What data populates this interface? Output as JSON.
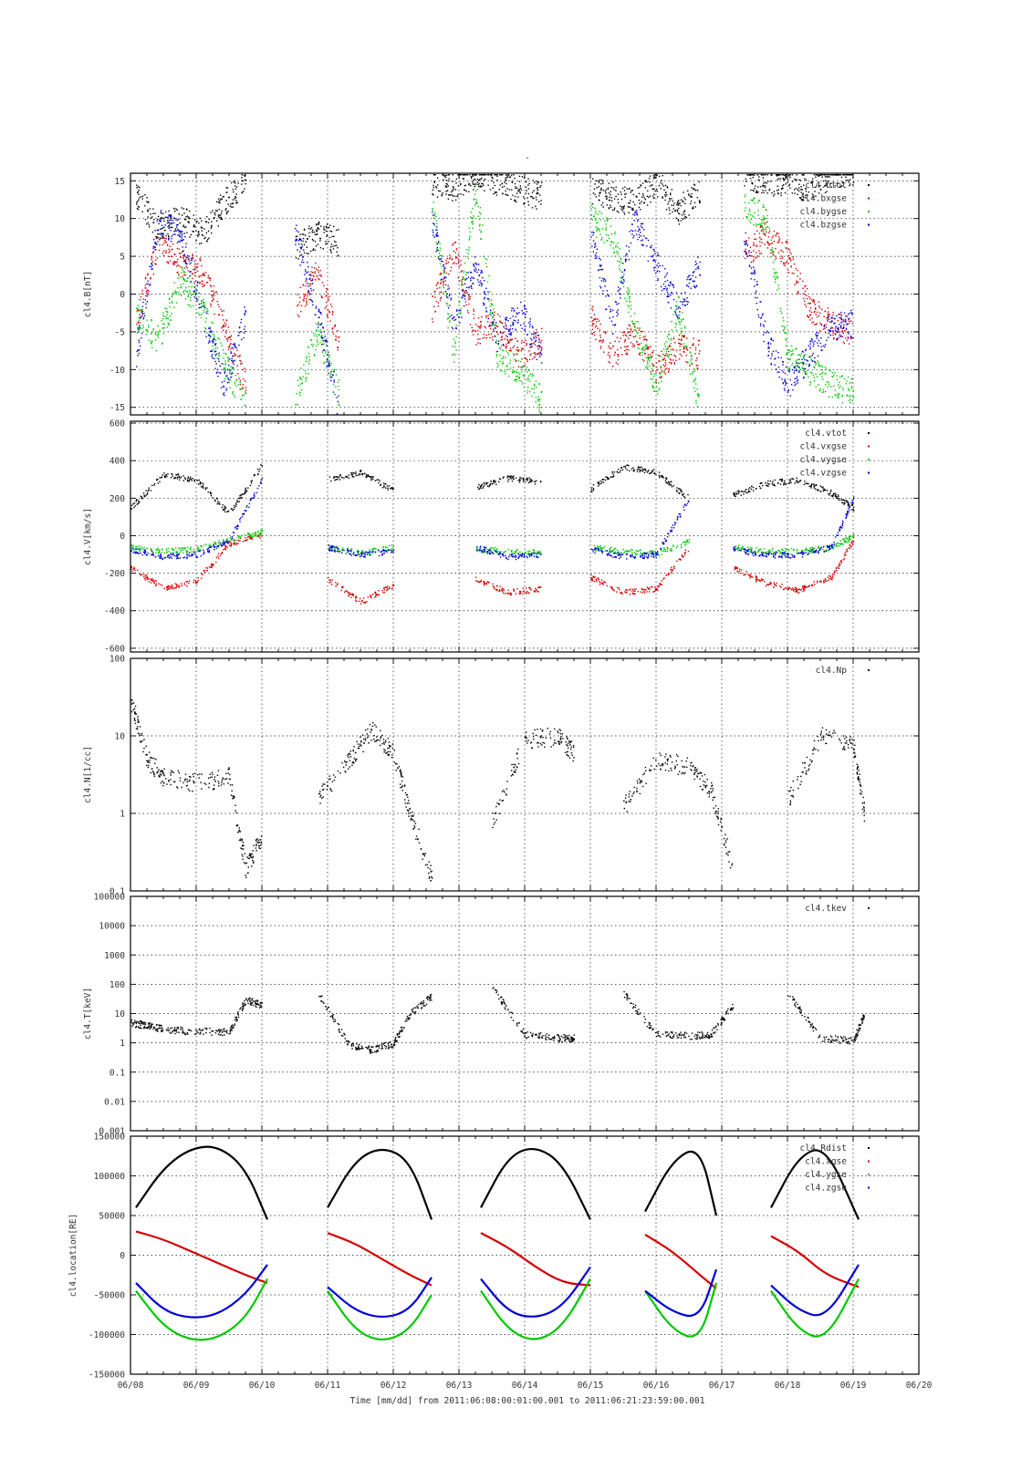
{
  "page": {
    "title": "-",
    "time_axis_label": "Time [mm/dd]  from 2011:06:08:00:01:00.001  to  2011:06:21:23:59:00.001"
  },
  "colors": {
    "black": "#000000",
    "red": "#d40000",
    "green": "#00c800",
    "blue": "#0000d8"
  },
  "x_axis": {
    "start": "2011-06-08",
    "end": "2011-06-20",
    "tick_labels": [
      "06/08",
      "06/09",
      "06/10",
      "06/11",
      "06/12",
      "06/13",
      "06/14",
      "06/15",
      "06/16",
      "06/17",
      "06/18",
      "06/19",
      "06/20"
    ]
  },
  "chart_data": [
    {
      "type": "scatter",
      "ylabel": "cl4.B[nT]",
      "ylim": [
        -16,
        16
      ],
      "yscale": "linear",
      "yticks": [
        -15,
        -10,
        -5,
        0,
        5,
        10,
        15
      ],
      "ytick_labels": [
        "-15",
        "-10",
        "-5",
        "0",
        "5",
        "10",
        "15"
      ],
      "grid": true,
      "legend_position": "top-right",
      "x": [
        "06/08 02h",
        "06/08 10h",
        "06/08 18h",
        "06/09 02h",
        "06/09 10h",
        "06/09 18h",
        "06/10 01h",
        "06/10 12h",
        "06/10 20h",
        "06/11 04h",
        "06/11 12h",
        "06/11 20h",
        "06/12 04h",
        "06/12 14h",
        "06/12 22h",
        "06/13 06h",
        "06/13 14h",
        "06/13 22h",
        "06/14 06h",
        "06/14 14h",
        "06/15 00h",
        "06/15 08h",
        "06/15 16h",
        "06/16 00h",
        "06/16 08h",
        "06/16 16h",
        "06/16 22h",
        "06/17 08h",
        "06/17 16h",
        "06/18 00h",
        "06/18 08h",
        "06/18 16h",
        "06/19 00h",
        "06/19 02h"
      ],
      "series": [
        {
          "name": "cl4.btot",
          "color": "#000000",
          "values": [
            13,
            9,
            10,
            8,
            12,
            15,
            null,
            6,
            8,
            7,
            null,
            null,
            null,
            15,
            14,
            16,
            15,
            14,
            13,
            null,
            14,
            13,
            12,
            15,
            11,
            14,
            null,
            16,
            15,
            15,
            14,
            16,
            16,
            null
          ]
        },
        {
          "name": "cl4.bxgse",
          "color": "#d40000",
          "values": [
            -4,
            7,
            4,
            3,
            -4,
            -12,
            null,
            -2,
            3,
            -6,
            null,
            null,
            null,
            -2,
            6,
            -5,
            -4,
            -8,
            -6,
            null,
            -3,
            -8,
            -5,
            -10,
            -7,
            -8,
            null,
            5,
            8,
            5,
            -2,
            -4,
            -5,
            null
          ]
        },
        {
          "name": "cl4.bygse",
          "color": "#00c800",
          "values": [
            -3,
            -6,
            2,
            -2,
            -9,
            -15,
            null,
            -14,
            -5,
            -13,
            null,
            null,
            null,
            12,
            -8,
            14,
            -8,
            -10,
            -14,
            null,
            10,
            8,
            -4,
            -12,
            -2,
            -15,
            null,
            12,
            10,
            -8,
            -10,
            -12,
            -13,
            null
          ]
        },
        {
          "name": "cl4.bzgse",
          "color": "#0000d8",
          "values": [
            -8,
            10,
            8,
            -2,
            -12,
            -3,
            null,
            8,
            -2,
            -15,
            null,
            null,
            null,
            10,
            -4,
            4,
            -6,
            -2,
            -8,
            null,
            8,
            -4,
            10,
            4,
            -2,
            4,
            null,
            8,
            -6,
            -12,
            -8,
            -4,
            -4,
            null
          ]
        }
      ]
    },
    {
      "type": "scatter",
      "ylabel": "cl4.V[km/s]",
      "ylim": [
        -620,
        610
      ],
      "yscale": "linear",
      "yticks": [
        -600,
        -400,
        -200,
        0,
        200,
        400,
        600
      ],
      "ytick_labels": [
        "-600",
        "-400",
        "-200",
        "0",
        "200",
        "400",
        "600"
      ],
      "grid": true,
      "legend_position": "top-right",
      "x": [
        "06/08 00h",
        "06/08 12h",
        "06/09 00h",
        "06/09 12h",
        "06/10 00h",
        "06/10 12h",
        "06/11 00h",
        "06/11 12h",
        "06/12 00h",
        "06/12 10h",
        "06/12 18h",
        "06/13 06h",
        "06/13 18h",
        "06/14 06h",
        "06/14 18h",
        "06/15 00h",
        "06/15 12h",
        "06/16 00h",
        "06/16 12h",
        "06/16 20h",
        "06/17 04h",
        "06/17 16h",
        "06/18 04h",
        "06/18 16h",
        "06/19 00h",
        "06/19 04h"
      ],
      "series": [
        {
          "name": "cl4.vtot",
          "color": "#000000",
          "values": [
            150,
            330,
            300,
            120,
            380,
            null,
            300,
            340,
            240,
            null,
            null,
            260,
            310,
            290,
            null,
            250,
            370,
            340,
            200,
            null,
            220,
            280,
            300,
            230,
            150,
            null
          ]
        },
        {
          "name": "cl4.vxgse",
          "color": "#d40000",
          "values": [
            -170,
            -280,
            -240,
            -40,
            10,
            null,
            -230,
            -350,
            -260,
            null,
            null,
            -230,
            -300,
            -280,
            null,
            -220,
            -300,
            -280,
            -60,
            null,
            -170,
            -250,
            -290,
            -220,
            -20,
            null
          ]
        },
        {
          "name": "cl4.vygse",
          "color": "#00c800",
          "values": [
            -60,
            -80,
            -70,
            -20,
            20,
            null,
            -60,
            -90,
            -60,
            null,
            null,
            -70,
            -80,
            -90,
            null,
            -60,
            -80,
            -90,
            -30,
            null,
            -60,
            -80,
            -80,
            -60,
            0,
            null
          ]
        },
        {
          "name": "cl4.vzgse",
          "color": "#0000d8",
          "values": [
            -70,
            -110,
            -100,
            -20,
            300,
            null,
            -60,
            -100,
            -80,
            null,
            null,
            -60,
            -110,
            -100,
            null,
            -70,
            -110,
            -100,
            200,
            null,
            -70,
            -100,
            -100,
            -60,
            200,
            null
          ]
        }
      ]
    },
    {
      "type": "scatter",
      "ylabel": "cl4.N[1/cc]",
      "ylim": [
        0.1,
        100
      ],
      "yscale": "log",
      "yticks": [
        0.1,
        1,
        10,
        100
      ],
      "ytick_labels": [
        "0.1",
        "1",
        "10",
        "100"
      ],
      "grid": true,
      "legend_position": "top-right",
      "x": [
        "06/08 00h",
        "06/08 06h",
        "06/08 12h",
        "06/09 00h",
        "06/09 12h",
        "06/09 18h",
        "06/10 00h",
        "06/10 12h",
        "06/10 20h",
        "06/11 08h",
        "06/11 16h",
        "06/12 00h",
        "06/12 06h",
        "06/12 14h",
        "06/12 22h",
        "06/13 12h",
        "06/14 00h",
        "06/14 12h",
        "06/14 18h",
        "06/15 00h",
        "06/15 12h",
        "06/16 00h",
        "06/16 12h",
        "06/16 20h",
        "06/17 04h",
        "06/17 12h",
        "06/18 00h",
        "06/18 12h",
        "06/19 00h",
        "06/19 04h"
      ],
      "series": [
        {
          "name": "cl4.Np",
          "color": "#000000",
          "values": [
            30,
            5,
            3,
            2.5,
            3,
            0.2,
            0.5,
            null,
            1.5,
            5,
            12,
            6,
            1,
            0.15,
            null,
            0.8,
            9,
            10,
            6,
            null,
            1.2,
            5,
            4,
            2,
            0.2,
            null,
            1.5,
            10,
            8,
            1
          ]
        }
      ]
    },
    {
      "type": "scatter",
      "ylabel": "cl4.T[keV]",
      "ylim": [
        0.001,
        100000
      ],
      "yscale": "log",
      "yticks": [
        0.001,
        0.01,
        0.1,
        1,
        10,
        100,
        1000,
        10000,
        100000
      ],
      "ytick_labels": [
        "0.001",
        "0.01",
        "0.1",
        "1",
        "10",
        "100",
        "1000",
        "10000",
        "100000"
      ],
      "grid": true,
      "legend_position": "top-right",
      "x": [
        "06/08 00h",
        "06/08 06h",
        "06/08 12h",
        "06/09 00h",
        "06/09 12h",
        "06/09 18h",
        "06/10 00h",
        "06/10 12h",
        "06/10 20h",
        "06/11 08h",
        "06/11 16h",
        "06/12 00h",
        "06/12 06h",
        "06/12 14h",
        "06/12 22h",
        "06/13 12h",
        "06/14 00h",
        "06/14 12h",
        "06/14 18h",
        "06/15 00h",
        "06/15 12h",
        "06/16 00h",
        "06/16 12h",
        "06/16 20h",
        "06/17 04h",
        "06/17 12h",
        "06/18 00h",
        "06/18 12h",
        "06/19 00h",
        "06/19 04h"
      ],
      "series": [
        {
          "name": "cl4.tkev",
          "color": "#000000",
          "values": [
            5,
            4,
            3,
            2.5,
            2.5,
            30,
            20,
            null,
            60,
            0.8,
            0.6,
            1,
            10,
            40,
            null,
            80,
            2,
            1.5,
            1.5,
            null,
            50,
            2,
            1.8,
            2,
            20,
            null,
            50,
            1.5,
            1.2,
            10
          ]
        }
      ]
    },
    {
      "type": "line",
      "ylabel": "cl4.location[RE]",
      "ylim": [
        -150000,
        150000
      ],
      "yscale": "linear",
      "yticks": [
        -150000,
        -100000,
        -50000,
        0,
        50000,
        100000,
        150000
      ],
      "ytick_labels": [
        "-150000",
        "-100000",
        "-50000",
        "0",
        "50000",
        "100000",
        "150000"
      ],
      "grid": true,
      "legend_position": "top-right",
      "x": [
        "06/08 02h",
        "06/08 12h",
        "06/08 22h",
        "06/09 08h",
        "06/09 18h",
        "06/10 02h",
        "06/10 14h",
        "06/11 00h",
        "06/11 10h",
        "06/11 20h",
        "06/12 06h",
        "06/12 14h",
        "06/12 22h",
        "06/13 08h",
        "06/13 18h",
        "06/14 04h",
        "06/14 14h",
        "06/15 00h",
        "06/15 10h",
        "06/15 20h",
        "06/16 06h",
        "06/16 16h",
        "06/16 22h",
        "06/17 08h",
        "06/17 18h",
        "06/18 04h",
        "06/18 14h",
        "06/19 02h"
      ],
      "series": [
        {
          "name": "cl4.Rdist",
          "color": "#000000",
          "values": [
            60000,
            110000,
            135000,
            138000,
            110000,
            45000,
            null,
            60000,
            120000,
            137000,
            120000,
            45000,
            null,
            60000,
            125000,
            138000,
            115000,
            45000,
            null,
            55000,
            120000,
            138000,
            50000,
            null,
            60000,
            125000,
            138000,
            45000
          ]
        },
        {
          "name": "cl4.xgse",
          "color": "#d40000",
          "values": [
            30000,
            20000,
            5000,
            -10000,
            -25000,
            -35000,
            null,
            28000,
            15000,
            -5000,
            -25000,
            -38000,
            null,
            28000,
            10000,
            -15000,
            -35000,
            -38000,
            null,
            26000,
            5000,
            -25000,
            -42000,
            null,
            24000,
            5000,
            -25000,
            -40000
          ]
        },
        {
          "name": "cl4.ygse",
          "color": "#00c800",
          "values": [
            -45000,
            -90000,
            -108000,
            -105000,
            -80000,
            -30000,
            null,
            -45000,
            -95000,
            -110000,
            -95000,
            -50000,
            null,
            -45000,
            -95000,
            -110000,
            -90000,
            -30000,
            null,
            -45000,
            -95000,
            -108000,
            -35000,
            null,
            -45000,
            -95000,
            -108000,
            -30000
          ]
        },
        {
          "name": "cl4.zgse",
          "color": "#0000d8",
          "values": [
            -35000,
            -70000,
            -80000,
            -75000,
            -50000,
            -12000,
            null,
            -40000,
            -70000,
            -80000,
            -70000,
            -28000,
            null,
            -30000,
            -72000,
            -80000,
            -65000,
            -15000,
            null,
            -45000,
            -72000,
            -80000,
            -18000,
            null,
            -38000,
            -70000,
            -80000,
            -12000
          ]
        }
      ]
    }
  ]
}
